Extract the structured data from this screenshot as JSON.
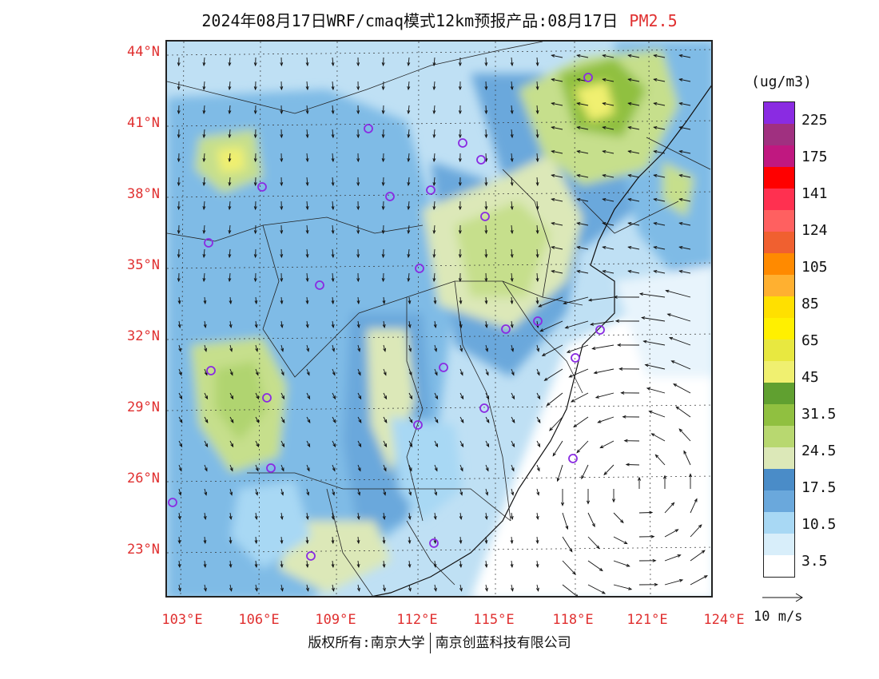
{
  "title": {
    "main": "2024年08月17日WRF/cmaq模式12km预报产品:08月17日",
    "pollutant": "PM2.5",
    "pollutant_color": "#e03030"
  },
  "latitude_labels": [
    "44°N",
    "41°N",
    "38°N",
    "35°N",
    "32°N",
    "29°N",
    "26°N",
    "23°N"
  ],
  "longitude_labels": [
    "103°E",
    "106°E",
    "109°E",
    "112°E",
    "115°E",
    "118°E",
    "121°E",
    "124°E"
  ],
  "colorbar": {
    "units": "(ug/m3)",
    "labels": [
      "225",
      "175",
      "141",
      "124",
      "105",
      "85",
      "65",
      "45",
      "31.5",
      "24.5",
      "17.5",
      "10.5",
      "3.5"
    ],
    "colors": [
      "#8a2be2",
      "#a03080",
      "#c01880",
      "#ff0000",
      "#ff3050",
      "#ff6060",
      "#f06030",
      "#ff8a00",
      "#ffb030",
      "#ffe000",
      "#fff000",
      "#e8e840",
      "#f0f070",
      "#60a030",
      "#90c040",
      "#b8d870",
      "#dce8b8",
      "#4a8cc8",
      "#6aa8dc",
      "#a8d8f4",
      "#d8eefa",
      "#ffffff"
    ],
    "label_color": "#e03030"
  },
  "wind_reference": {
    "label": "10 m/s"
  },
  "footer": {
    "copyright": "版权所有:南京大学",
    "company": "南京创蓝科技有限公司"
  }
}
